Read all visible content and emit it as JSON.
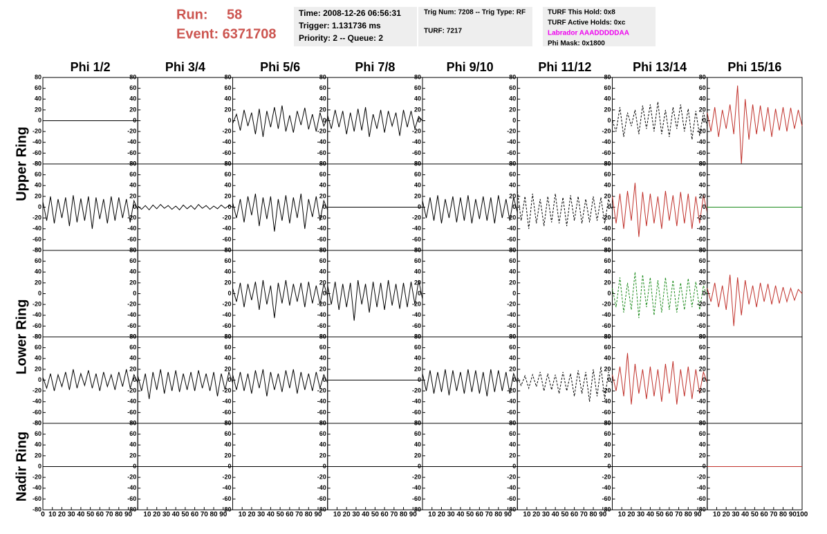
{
  "header": {
    "run_label": "Run:",
    "run": "58",
    "event": "Event: 6371708",
    "info1": [
      "Time: 2008-12-26 06:56:31",
      "Trigger: 1.131736 ms",
      "Priority: 2 -- Queue: 2"
    ],
    "info2": [
      "Trig Num: 7208 -- Trig Type: RF",
      "TURF: 7217"
    ],
    "info3": [
      "TURF This Hold: 0x8",
      "TURF Active Holds: 0xc",
      "Labrador AAADDDDDAA",
      "Phi Mask: 0x1800"
    ],
    "info3_colors": [
      "#000000",
      "#000000",
      "#ee00ee",
      "#000000"
    ]
  },
  "columns": [
    "Phi 1/2",
    "Phi 3/4",
    "Phi 5/6",
    "Phi 7/8",
    "Phi 9/10",
    "Phi 11/12",
    "Phi 13/14",
    "Phi 15/16"
  ],
  "rows": [
    "Upper Ring",
    "Lower Ring",
    "Nadir Ring"
  ],
  "axes": {
    "xlim": [
      0,
      100
    ],
    "ylim": [
      -80,
      80
    ],
    "yticks": [
      80,
      60,
      40,
      20,
      0,
      -20,
      -40,
      -60,
      -80
    ],
    "xticks": [
      0,
      10,
      20,
      30,
      40,
      50,
      60,
      70,
      80,
      90,
      100
    ],
    "x": [
      0,
      4,
      8,
      12,
      16,
      20,
      24,
      28,
      32,
      36,
      40,
      44,
      48,
      52,
      56,
      60,
      64,
      68,
      72,
      76,
      80,
      84,
      88,
      92,
      96,
      100
    ]
  },
  "chart_data": [
    {
      "type": "line",
      "color": "#000000",
      "x": [
        0,
        100
      ],
      "values": [
        0,
        0
      ]
    },
    {
      "type": "empty"
    },
    {
      "type": "line",
      "color": "#000000",
      "values": [
        -5,
        12,
        -18,
        20,
        -10,
        15,
        -25,
        22,
        -30,
        18,
        -12,
        25,
        -15,
        28,
        -20,
        10,
        -22,
        18,
        -8,
        24,
        -16,
        12,
        -20,
        15,
        -10,
        5
      ]
    },
    {
      "type": "line",
      "color": "#000000",
      "values": [
        10,
        -15,
        20,
        -12,
        18,
        -25,
        15,
        -20,
        22,
        -18,
        25,
        -30,
        12,
        -15,
        20,
        -22,
        18,
        -10,
        15,
        -28,
        20,
        -12,
        18,
        -15,
        8,
        0
      ]
    },
    {
      "type": "empty"
    },
    {
      "type": "empty"
    },
    {
      "type": "line",
      "color": "#000000",
      "dashed": true,
      "values": [
        0,
        -20,
        25,
        -30,
        15,
        -10,
        20,
        -25,
        28,
        -15,
        30,
        -20,
        35,
        -25,
        20,
        -30,
        25,
        -15,
        30,
        -20,
        22,
        -35,
        18,
        -28,
        15,
        -10
      ]
    },
    {
      "type": "line",
      "color": "#c0302a",
      "values": [
        15,
        -20,
        25,
        -30,
        20,
        -15,
        30,
        -25,
        65,
        -80,
        40,
        -35,
        30,
        -25,
        28,
        -20,
        25,
        -30,
        22,
        -18,
        25,
        -20,
        24,
        -15,
        20,
        -10
      ]
    },
    {
      "type": "line",
      "color": "#000000",
      "values": [
        10,
        -25,
        20,
        -30,
        15,
        -20,
        18,
        -35,
        22,
        -28,
        16,
        -25,
        20,
        -40,
        18,
        -22,
        15,
        -30,
        20,
        -25,
        18,
        -20,
        15,
        -28,
        12,
        -5
      ]
    },
    {
      "type": "line",
      "color": "#000000",
      "values": [
        2,
        -4,
        3,
        -5,
        4,
        -3,
        5,
        -2,
        3,
        -4,
        2,
        -5,
        4,
        -3,
        3,
        -4,
        5,
        -2,
        3,
        -4,
        2,
        -3,
        4,
        -2,
        3,
        0
      ]
    },
    {
      "type": "line",
      "color": "#000000",
      "values": [
        8,
        -20,
        15,
        -28,
        20,
        -15,
        25,
        -35,
        18,
        -22,
        20,
        -45,
        15,
        -25,
        22,
        -30,
        18,
        -20,
        25,
        -40,
        15,
        -18,
        20,
        -25,
        12,
        -5
      ]
    },
    {
      "type": "line",
      "color": "#000000",
      "x": [
        0,
        100
      ],
      "values": [
        0,
        0
      ]
    },
    {
      "type": "line",
      "color": "#000000",
      "values": [
        12,
        -20,
        18,
        -25,
        22,
        -30,
        15,
        -20,
        20,
        -28,
        18,
        -25,
        22,
        -30,
        15,
        -22,
        20,
        -25,
        18,
        -30,
        22,
        -20,
        15,
        -25,
        18,
        -10
      ]
    },
    {
      "type": "line",
      "color": "#000000",
      "dashed": true,
      "values": [
        30,
        -25,
        20,
        -40,
        25,
        -30,
        15,
        -35,
        20,
        -28,
        25,
        -30,
        18,
        -35,
        22,
        -25,
        20,
        -30,
        15,
        -28,
        20,
        -25,
        18,
        -30,
        15,
        -5
      ]
    },
    {
      "type": "line",
      "color": "#c0302a",
      "values": [
        20,
        -30,
        25,
        -40,
        30,
        -25,
        45,
        -55,
        28,
        -35,
        25,
        -30,
        20,
        -40,
        30,
        -25,
        22,
        -35,
        28,
        -30,
        25,
        -40,
        20,
        -30,
        22,
        -10
      ]
    },
    {
      "type": "line",
      "color": "#1a8a1a",
      "x": [
        0,
        100
      ],
      "values": [
        0,
        0
      ]
    },
    {
      "type": "empty"
    },
    {
      "type": "empty"
    },
    {
      "type": "line",
      "color": "#000000",
      "values": [
        10,
        -15,
        20,
        -25,
        18,
        -12,
        22,
        -30,
        25,
        -20,
        15,
        -45,
        20,
        -18,
        25,
        -22,
        18,
        -15,
        20,
        -25,
        22,
        -18,
        15,
        -20,
        18,
        -5
      ]
    },
    {
      "type": "line",
      "color": "#000000",
      "values": [
        15,
        -20,
        22,
        -30,
        18,
        -25,
        20,
        -50,
        25,
        -20,
        18,
        -35,
        22,
        -25,
        20,
        -30,
        25,
        -22,
        18,
        -28,
        20,
        -25,
        22,
        -20,
        25,
        -10
      ]
    },
    {
      "type": "empty"
    },
    {
      "type": "empty"
    },
    {
      "type": "line",
      "color": "#1a8a1a",
      "dashed": true,
      "values": [
        10,
        -25,
        30,
        -35,
        20,
        -30,
        40,
        -45,
        35,
        -25,
        30,
        -40,
        25,
        -35,
        30,
        -30,
        25,
        -35,
        20,
        -30,
        28,
        -25,
        22,
        -30,
        15,
        -5
      ]
    },
    {
      "type": "line",
      "color": "#c0302a",
      "values": [
        10,
        -15,
        20,
        -25,
        15,
        -30,
        35,
        -60,
        30,
        -40,
        25,
        -20,
        15,
        -25,
        20,
        -15,
        18,
        -20,
        15,
        -18,
        12,
        -15,
        10,
        -12,
        8,
        0
      ]
    },
    {
      "type": "line",
      "color": "#000000",
      "values": [
        5,
        -15,
        12,
        -20,
        10,
        -12,
        15,
        -18,
        20,
        -15,
        12,
        -10,
        18,
        -15,
        12,
        -20,
        15,
        -12,
        10,
        -18,
        15,
        -12,
        20,
        -15,
        10,
        -5
      ]
    },
    {
      "type": "line",
      "color": "#000000",
      "values": [
        8,
        -20,
        12,
        -35,
        15,
        -18,
        20,
        -25,
        15,
        -20,
        18,
        -22,
        12,
        -18,
        15,
        -20,
        18,
        -15,
        12,
        -20,
        15,
        -30,
        12,
        -18,
        15,
        -5
      ]
    },
    {
      "type": "line",
      "color": "#000000",
      "values": [
        10,
        -18,
        15,
        -20,
        12,
        -25,
        18,
        -15,
        20,
        -30,
        15,
        -18,
        12,
        -22,
        18,
        -15,
        20,
        -25,
        15,
        -18,
        12,
        -20,
        15,
        -15,
        10,
        -5
      ]
    },
    {
      "type": "line",
      "color": "#000000",
      "x": [
        0,
        100
      ],
      "values": [
        0,
        0
      ]
    },
    {
      "type": "line",
      "color": "#000000",
      "values": [
        12,
        -20,
        18,
        -25,
        15,
        -22,
        20,
        -28,
        18,
        -20,
        15,
        -25,
        20,
        -22,
        18,
        -25,
        15,
        -30,
        20,
        -22,
        18,
        -20,
        15,
        -25,
        12,
        -5
      ]
    },
    {
      "type": "line",
      "color": "#000000",
      "dashed": true,
      "values": [
        5,
        -10,
        8,
        -15,
        10,
        -12,
        15,
        -20,
        12,
        -18,
        10,
        -25,
        15,
        -20,
        12,
        -30,
        18,
        -25,
        15,
        -40,
        20,
        -30,
        25,
        -35,
        15,
        -10
      ]
    },
    {
      "type": "line",
      "color": "#c0302a",
      "values": [
        10,
        -20,
        25,
        -30,
        50,
        -45,
        30,
        -25,
        20,
        -35,
        25,
        -30,
        20,
        -40,
        30,
        -25,
        35,
        -45,
        20,
        -30,
        25,
        -35,
        20,
        -25,
        15,
        -5
      ]
    },
    {
      "type": "empty"
    },
    {
      "type": "line",
      "color": "#000000",
      "x": [
        0,
        100
      ],
      "values": [
        0,
        0
      ]
    },
    {
      "type": "line",
      "color": "#000000",
      "x": [
        0,
        100
      ],
      "values": [
        0,
        0
      ]
    },
    {
      "type": "line",
      "color": "#000000",
      "x": [
        0,
        100
      ],
      "values": [
        0,
        0
      ]
    },
    {
      "type": "line",
      "color": "#000000",
      "x": [
        0,
        100
      ],
      "values": [
        0,
        0
      ]
    },
    {
      "type": "line",
      "color": "#000000",
      "x": [
        0,
        100
      ],
      "values": [
        0,
        0
      ]
    },
    {
      "type": "line",
      "color": "#000000",
      "x": [
        0,
        100
      ],
      "values": [
        0,
        0
      ]
    },
    {
      "type": "line",
      "color": "#000000",
      "x": [
        0,
        100
      ],
      "values": [
        0,
        0
      ]
    },
    {
      "type": "line",
      "color": "#c0302a",
      "x": [
        0,
        100
      ],
      "values": [
        0,
        0
      ]
    }
  ]
}
